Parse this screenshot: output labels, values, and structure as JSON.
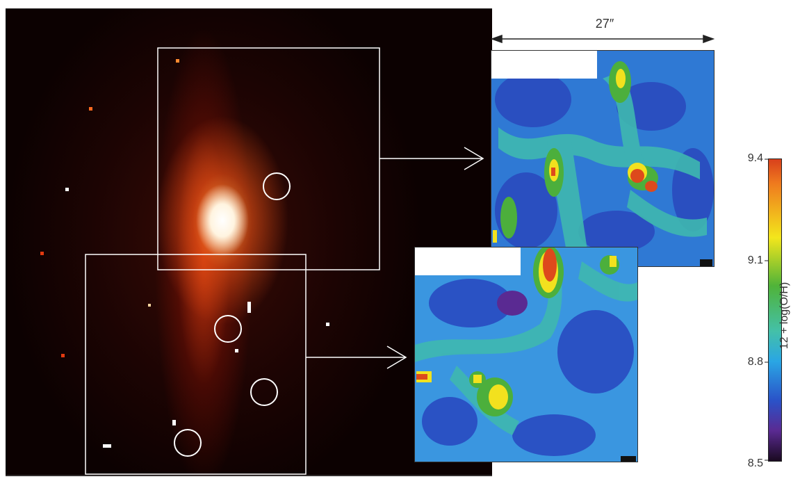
{
  "scale_label": "27″",
  "colorbar": {
    "title": "12 + log(O/H)",
    "ticks": [
      "9.4",
      "9.1",
      "8.8",
      "8.5"
    ]
  }
}
